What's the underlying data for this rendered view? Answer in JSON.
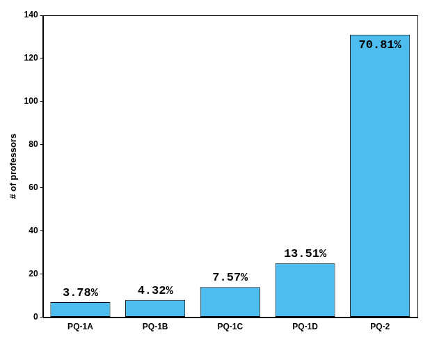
{
  "chart_data": {
    "type": "bar",
    "y_label": "# of professors",
    "categories": [
      "PQ-1A",
      "PQ-1B",
      "PQ-1C",
      "PQ-1D",
      "PQ-2"
    ],
    "values": [
      7,
      8,
      14,
      25,
      131
    ],
    "color": "#4dbdf0",
    "ylim": [
      0,
      140
    ],
    "yticks": [
      0,
      20,
      40,
      60,
      80,
      100,
      120,
      140
    ],
    "grid": false,
    "annotations": [
      {
        "category": "PQ-1A",
        "text": "3.78%"
      },
      {
        "category": "PQ-1B",
        "text": "4.32%"
      },
      {
        "category": "PQ-1C",
        "text": "7.57%"
      },
      {
        "category": "PQ-1D",
        "text": "13.51%"
      },
      {
        "category": "PQ-2",
        "text": "70.81%"
      }
    ]
  }
}
